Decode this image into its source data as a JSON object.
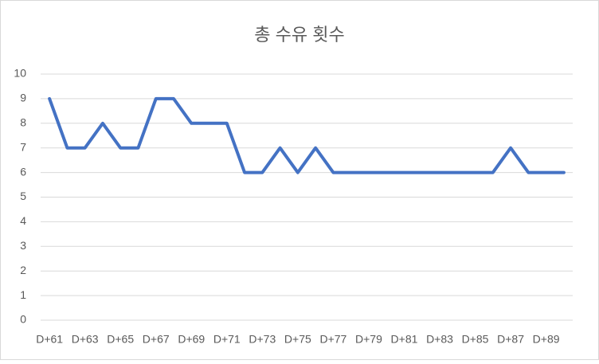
{
  "chart_data": {
    "type": "line",
    "title": "총 수유 횟수",
    "categories": [
      "D+61",
      null,
      "D+63",
      null,
      "D+65",
      null,
      "D+67",
      null,
      "D+69",
      null,
      "D+71",
      null,
      "D+73",
      null,
      "D+75",
      null,
      "D+77",
      null,
      "D+79",
      null,
      "D+81",
      null,
      "D+83",
      null,
      "D+85",
      null,
      "D+87",
      null,
      "D+89",
      null
    ],
    "series": [
      {
        "name": "총 수유 횟수",
        "color": "#4472c4",
        "values": [
          9,
          7,
          7,
          8,
          7,
          7,
          9,
          9,
          8,
          8,
          8,
          6,
          6,
          7,
          6,
          7,
          6,
          6,
          6,
          6,
          6,
          6,
          6,
          6,
          6,
          6,
          7,
          6,
          6,
          6
        ]
      }
    ],
    "ylim": [
      0,
      10
    ],
    "yticks": [
      0,
      1,
      2,
      3,
      4,
      5,
      6,
      7,
      8,
      9,
      10
    ],
    "grid": true
  }
}
